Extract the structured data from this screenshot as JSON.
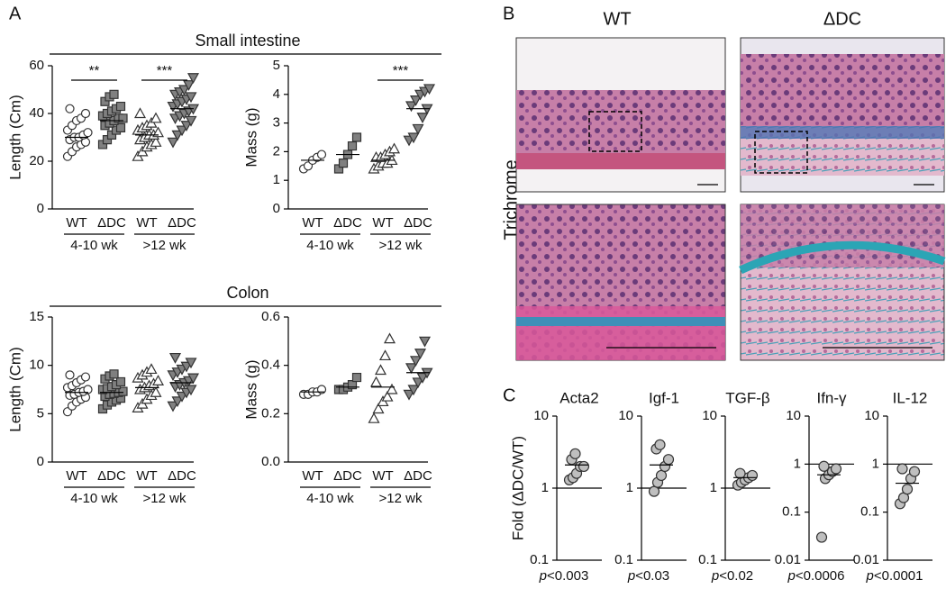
{
  "figure": {
    "panel_labels": [
      "A",
      "B",
      "C"
    ],
    "headings": [
      "Small intestine",
      "Colon"
    ],
    "histology": {
      "columns": [
        "WT",
        "ΔDC"
      ],
      "stain": "Trichrome"
    }
  },
  "chart_data": [
    {
      "type": "strip",
      "ylabel": "Length (Cm)",
      "ylim": [
        0,
        60
      ],
      "yticks": [
        0,
        20,
        40,
        60
      ],
      "categories": [
        "WT",
        "ΔDC",
        "WT",
        "ΔDC"
      ],
      "groups": [
        "4-10 wk",
        ">12 wk"
      ],
      "group_significance": [
        "**",
        "***"
      ],
      "markers": [
        "circle",
        "square",
        "triangle",
        "triangle-down"
      ],
      "fills": [
        "#ffffff",
        "#808080",
        "#ffffff",
        "#808080"
      ],
      "values": [
        [
          22,
          24,
          26,
          27,
          28,
          29,
          30,
          30,
          31,
          32,
          33,
          35,
          37,
          38,
          40,
          42
        ],
        [
          27,
          29,
          31,
          33,
          34,
          35,
          36,
          37,
          38,
          38,
          39,
          40,
          41,
          42,
          43,
          45,
          47,
          48
        ],
        [
          22,
          24,
          26,
          27,
          28,
          29,
          30,
          31,
          31,
          32,
          33,
          34,
          35,
          36,
          38,
          40
        ],
        [
          28,
          31,
          33,
          35,
          37,
          38,
          39,
          40,
          41,
          42,
          43,
          44,
          45,
          46,
          47,
          48,
          49,
          50,
          52,
          55
        ]
      ],
      "means": [
        30,
        37,
        31,
        42
      ]
    },
    {
      "type": "strip",
      "ylabel": "Mass (g)",
      "ylim": [
        0,
        5
      ],
      "yticks": [
        0,
        1,
        2,
        3,
        4,
        5
      ],
      "categories": [
        "WT",
        "ΔDC",
        "WT",
        "ΔDC"
      ],
      "groups": [
        "4-10 wk",
        ">12 wk"
      ],
      "group_significance": [
        null,
        "***"
      ],
      "markers": [
        "circle",
        "square",
        "triangle",
        "triangle-down"
      ],
      "fills": [
        "#ffffff",
        "#808080",
        "#ffffff",
        "#808080"
      ],
      "values": [
        [
          1.4,
          1.5,
          1.7,
          1.8,
          1.9
        ],
        [
          1.4,
          1.6,
          1.9,
          2.2,
          2.5
        ],
        [
          1.4,
          1.5,
          1.6,
          1.6,
          1.7,
          1.8,
          1.8,
          1.9,
          2.0,
          2.1
        ],
        [
          2.4,
          2.5,
          2.8,
          3.2,
          3.5,
          3.6,
          3.8,
          4.0,
          4.1,
          4.2
        ]
      ],
      "means": [
        1.7,
        1.9,
        1.7,
        3.5
      ]
    },
    {
      "type": "strip",
      "ylabel": "Length (Cm)",
      "ylim": [
        0,
        15
      ],
      "yticks": [
        0,
        5,
        10,
        15
      ],
      "categories": [
        "WT",
        "ΔDC",
        "WT",
        "ΔDC"
      ],
      "groups": [
        "4-10 wk",
        ">12 wk"
      ],
      "group_significance": [
        null,
        null
      ],
      "markers": [
        "circle",
        "square",
        "triangle",
        "triangle-down"
      ],
      "fills": [
        "#ffffff",
        "#808080",
        "#ffffff",
        "#808080"
      ],
      "values": [
        [
          5.2,
          5.8,
          6.2,
          6.5,
          6.7,
          6.9,
          7.0,
          7.2,
          7.3,
          7.5,
          7.7,
          7.9,
          8.2,
          8.5,
          8.8,
          9.0
        ],
        [
          5.5,
          5.9,
          6.2,
          6.4,
          6.6,
          6.8,
          7.0,
          7.1,
          7.2,
          7.3,
          7.5,
          7.6,
          7.8,
          8.0,
          8.3,
          8.6,
          8.9,
          9.1
        ],
        [
          5.6,
          6.0,
          6.5,
          6.9,
          7.2,
          7.5,
          7.7,
          7.9,
          8.1,
          8.4,
          8.7,
          9.0,
          9.3,
          9.6
        ],
        [
          5.8,
          6.3,
          6.8,
          7.2,
          7.5,
          7.8,
          8.0,
          8.2,
          8.4,
          8.7,
          9.0,
          9.3,
          9.6,
          9.9,
          10.3,
          10.8
        ]
      ],
      "means": [
        7.2,
        7.2,
        7.7,
        8.2
      ]
    },
    {
      "type": "strip",
      "ylabel": "Mass (g)",
      "ylim": [
        0,
        0.6
      ],
      "yticks": [
        {
          "value": 0,
          "label": "0.0"
        },
        0.2,
        0.4,
        0.6
      ],
      "categories": [
        "WT",
        "ΔDC",
        "WT",
        "ΔDC"
      ],
      "groups": [
        "4-10 wk",
        ">12 wk"
      ],
      "group_significance": [
        null,
        null
      ],
      "markers": [
        "circle",
        "square",
        "triangle",
        "triangle-down"
      ],
      "fills": [
        "#ffffff",
        "#808080",
        "#ffffff",
        "#808080"
      ],
      "values": [
        [
          0.28,
          0.28,
          0.29,
          0.29,
          0.3
        ],
        [
          0.3,
          0.3,
          0.31,
          0.32,
          0.35
        ],
        [
          0.18,
          0.22,
          0.25,
          0.27,
          0.3,
          0.33,
          0.38,
          0.44,
          0.51
        ],
        [
          0.28,
          0.3,
          0.33,
          0.35,
          0.37,
          0.39,
          0.42,
          0.45,
          0.5
        ]
      ],
      "means": [
        0.29,
        0.31,
        0.31,
        0.37
      ]
    },
    {
      "type": "strip",
      "title": "Acta2",
      "ylabel": "Fold (ΔDC/WT)",
      "log_scale": true,
      "ylim": [
        0.1,
        10
      ],
      "yticks": [
        0.1,
        1,
        10
      ],
      "reference": 1,
      "markers": [
        "circle"
      ],
      "fills": [
        "#bfbfbf"
      ],
      "values": [
        [
          1.3,
          1.4,
          1.6,
          2,
          2,
          2.5,
          3
        ]
      ],
      "means": [
        2.1
      ],
      "stat": {
        "symbol": "p",
        "threshold": "<0.003"
      }
    },
    {
      "type": "strip",
      "title": "Igf-1",
      "log_scale": true,
      "ylim": [
        0.1,
        10
      ],
      "yticks": [
        0.1,
        1,
        10
      ],
      "reference": 1,
      "markers": [
        "circle"
      ],
      "fills": [
        "#bfbfbf"
      ],
      "values": [
        [
          0.9,
          1.2,
          1.5,
          2,
          2.5,
          3.5,
          4
        ]
      ],
      "means": [
        2.1
      ],
      "stat": {
        "symbol": "p",
        "threshold": "<0.03"
      }
    },
    {
      "type": "strip",
      "title": "TGF-β",
      "log_scale": true,
      "ylim": [
        0.1,
        10
      ],
      "yticks": [
        0.1,
        1,
        10
      ],
      "reference": 1,
      "markers": [
        "circle"
      ],
      "fills": [
        "#bfbfbf"
      ],
      "values": [
        [
          1.1,
          1.2,
          1.3,
          1.4,
          1.5,
          1.6
        ]
      ],
      "means": [
        1.4
      ],
      "stat": {
        "symbol": "p",
        "threshold": "<0.02"
      }
    },
    {
      "type": "strip",
      "title": "Ifn-γ",
      "log_scale": true,
      "ylim": [
        0.01,
        10
      ],
      "yticks": [
        0.01,
        0.1,
        1,
        10
      ],
      "reference": 1,
      "markers": [
        "circle"
      ],
      "fills": [
        "#bfbfbf"
      ],
      "values": [
        [
          0.03,
          0.5,
          0.6,
          0.7,
          0.8,
          0.9
        ]
      ],
      "means": [
        0.6
      ],
      "stat": {
        "symbol": "p",
        "threshold": "<0.0006"
      }
    },
    {
      "type": "strip",
      "title": "IL-12",
      "log_scale": true,
      "ylim": [
        0.01,
        10
      ],
      "yticks": [
        0.01,
        0.1,
        1,
        10
      ],
      "reference": 1,
      "markers": [
        "circle"
      ],
      "fills": [
        "#bfbfbf"
      ],
      "values": [
        [
          0.15,
          0.2,
          0.3,
          0.5,
          0.7,
          0.8
        ]
      ],
      "means": [
        0.4
      ],
      "stat": {
        "symbol": "p",
        "threshold": "<0.0001"
      }
    }
  ]
}
